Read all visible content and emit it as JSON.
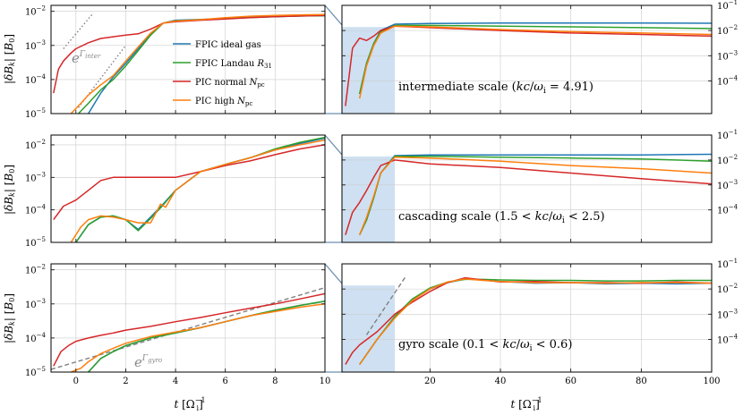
{
  "figure": {
    "colors": {
      "fpic_ideal": "#1f77b4",
      "fpic_landau": "#2ca02c",
      "pic_normal": "#d62728",
      "pic_high": "#ff7f0e",
      "grey_dash": "#808080",
      "grey_dot": "#808080",
      "shade": "#c6dbef"
    },
    "legend": [
      {
        "label": "FPIC ideal gas",
        "color_key": "fpic_ideal"
      },
      {
        "label": "FPIC Landau R31",
        "color_key": "fpic_landau"
      },
      {
        "label": "PIC normal Npc",
        "color_key": "pic_normal"
      },
      {
        "label": "PIC high Npc",
        "color_key": "pic_high"
      }
    ],
    "y_label": "|δB_k| [B_0]",
    "x_label": "t [Ω_i^-1]",
    "annotations": {
      "gamma_inter": "e^Γinter",
      "gamma_gyro": "e^Γgyro",
      "row1": "intermediate scale (kc/ωi = 4.91)",
      "row2": "cascading scale (1.5 < kc/ωi < 2.5)",
      "row3": "gyro scale (0.1 < kc/ωi < 0.6)"
    }
  },
  "chart_data": [
    {
      "type": "line",
      "panel": "row1-left",
      "yscale": "log",
      "xlim": [
        -1,
        10
      ],
      "ylim": [
        1e-05,
        0.015
      ],
      "xticks": [
        0,
        2,
        4,
        6,
        8,
        10
      ],
      "yticks_exp": [
        -5,
        -4,
        -3,
        -2
      ],
      "ytick_side": "left",
      "series": [
        {
          "name": "FPIC ideal gas",
          "color_key": "fpic_ideal",
          "x": [
            0.5,
            1,
            1.5,
            2,
            2.5,
            3,
            3.5,
            4,
            5,
            6,
            7,
            8,
            9,
            10
          ],
          "y": [
            1e-05,
            4e-05,
            0.00012,
            0.0003,
            0.0008,
            0.0022,
            0.0045,
            0.0055,
            0.0058,
            0.0062,
            0.0067,
            0.007,
            0.0073,
            0.0075
          ]
        },
        {
          "name": "FPIC Landau R31",
          "color_key": "fpic_landau",
          "x": [
            0.1,
            0.5,
            1,
            1.5,
            2,
            2.5,
            3,
            3.5,
            4,
            5,
            6,
            7,
            8,
            9,
            10
          ],
          "y": [
            1e-05,
            2e-05,
            5e-05,
            0.0001,
            0.00025,
            0.0007,
            0.002,
            0.0045,
            0.0053,
            0.0057,
            0.0062,
            0.0066,
            0.007,
            0.0073,
            0.0075
          ]
        },
        {
          "name": "PIC normal Npc",
          "color_key": "pic_normal",
          "x": [
            -0.9,
            -0.7,
            -0.5,
            -0.2,
            0,
            0.5,
            1,
            1.5,
            2,
            2.5,
            3,
            3.5,
            4,
            5,
            6,
            7,
            8,
            9,
            10
          ],
          "y": [
            4e-05,
            0.0002,
            0.00035,
            0.0006,
            0.0008,
            0.0012,
            0.0016,
            0.0018,
            0.002,
            0.0022,
            0.003,
            0.0045,
            0.005,
            0.0055,
            0.006,
            0.0065,
            0.007,
            0.0073,
            0.0076
          ]
        },
        {
          "name": "PIC high Npc",
          "color_key": "pic_high",
          "x": [
            -0.2,
            0.2,
            0.5,
            1,
            1.5,
            2,
            2.5,
            3,
            3.5,
            4,
            5,
            6,
            7,
            8,
            9,
            10
          ],
          "y": [
            1e-05,
            2e-05,
            3.5e-05,
            7e-05,
            0.00013,
            0.00035,
            0.0009,
            0.0023,
            0.0045,
            0.0052,
            0.0057,
            0.0065,
            0.0072,
            0.0076,
            0.0079,
            0.0081
          ]
        }
      ],
      "reference_lines": [
        {
          "style": "dotted",
          "color_key": "grey_dot",
          "x": [
            -0.5,
            0.7
          ],
          "y": [
            0.0008,
            0.009
          ]
        },
        {
          "style": "dotted",
          "color_key": "grey_dot",
          "x": [
            0.1,
            2.0
          ],
          "y": [
            1.5e-05,
            0.001
          ]
        }
      ]
    },
    {
      "type": "line",
      "panel": "row1-right",
      "yscale": "log",
      "xlim": [
        -5,
        100
      ],
      "ylim": [
        5e-06,
        0.1
      ],
      "xticks": [
        20,
        40,
        60,
        80,
        100
      ],
      "yticks_exp": [
        -4,
        -3,
        -2,
        -1
      ],
      "ytick_side": "right",
      "shade_x": [
        -5,
        10
      ],
      "series": [
        {
          "name": "FPIC ideal gas",
          "color_key": "fpic_ideal",
          "x": [
            0,
            2,
            4,
            6,
            10,
            20,
            40,
            60,
            80,
            100
          ],
          "y": [
            3e-05,
            0.0005,
            0.003,
            0.01,
            0.018,
            0.019,
            0.02,
            0.02,
            0.02,
            0.0195
          ]
        },
        {
          "name": "FPIC Landau R31",
          "color_key": "fpic_landau",
          "x": [
            0,
            2,
            4,
            6,
            10,
            20,
            40,
            60,
            80,
            100
          ],
          "y": [
            3e-05,
            0.0005,
            0.003,
            0.009,
            0.016,
            0.016,
            0.015,
            0.014,
            0.013,
            0.012
          ]
        },
        {
          "name": "PIC normal Npc",
          "color_key": "pic_normal",
          "x": [
            -4,
            -2,
            0,
            2,
            4,
            6,
            10,
            20,
            40,
            60,
            80,
            100
          ],
          "y": [
            1e-05,
            0.002,
            0.005,
            0.004,
            0.006,
            0.01,
            0.015,
            0.013,
            0.01,
            0.008,
            0.007,
            0.006
          ]
        },
        {
          "name": "PIC high Npc",
          "color_key": "pic_high",
          "x": [
            0,
            2,
            4,
            6,
            10,
            20,
            40,
            60,
            80,
            100
          ],
          "y": [
            2e-05,
            0.0004,
            0.0025,
            0.008,
            0.015,
            0.014,
            0.011,
            0.009,
            0.008,
            0.007
          ]
        }
      ]
    },
    {
      "type": "line",
      "panel": "row2-left",
      "yscale": "log",
      "xlim": [
        -1,
        10
      ],
      "ylim": [
        1e-05,
        0.02
      ],
      "xticks": [
        0,
        2,
        4,
        6,
        8,
        10
      ],
      "yticks_exp": [
        -5,
        -4,
        -3,
        -2
      ],
      "ytick_side": "left",
      "series": [
        {
          "name": "FPIC ideal gas",
          "color_key": "fpic_ideal",
          "x": [
            0,
            0.5,
            1,
            1.5,
            2,
            2.5,
            3,
            3.5,
            4,
            5,
            6,
            7,
            8,
            9,
            10
          ],
          "y": [
            1e-05,
            3.5e-05,
            6e-05,
            6.5e-05,
            5e-05,
            2.5e-05,
            6e-05,
            0.00015,
            0.0004,
            0.0015,
            0.0025,
            0.004,
            0.007,
            0.011,
            0.016
          ]
        },
        {
          "name": "FPIC Landau R31",
          "color_key": "fpic_landau",
          "x": [
            0,
            0.5,
            1,
            1.5,
            2,
            2.5,
            3,
            3.5,
            4,
            5,
            6,
            7,
            8,
            9,
            10
          ],
          "y": [
            1e-05,
            3.5e-05,
            6e-05,
            6.5e-05,
            5e-05,
            2.3e-05,
            5.5e-05,
            0.00014,
            0.0004,
            0.0015,
            0.0025,
            0.004,
            0.0075,
            0.012,
            0.017
          ]
        },
        {
          "name": "PIC normal Npc",
          "color_key": "pic_normal",
          "x": [
            -0.9,
            -0.5,
            0,
            0.5,
            1,
            1.5,
            2,
            3,
            4,
            5,
            6,
            7,
            8,
            9,
            10
          ],
          "y": [
            5e-05,
            0.00013,
            0.0002,
            0.0004,
            0.0008,
            0.001,
            0.001,
            0.001,
            0.001,
            0.0015,
            0.0023,
            0.0032,
            0.005,
            0.0075,
            0.01
          ]
        },
        {
          "name": "PIC high Npc",
          "color_key": "pic_high",
          "x": [
            -0.2,
            0.2,
            0.5,
            1,
            1.5,
            2,
            2.5,
            3,
            3.4,
            3.6,
            4,
            5,
            6,
            7,
            8,
            9,
            10
          ],
          "y": [
            1e-05,
            3e-05,
            5e-05,
            6.5e-05,
            6e-05,
            5e-05,
            4e-05,
            4e-05,
            0.00015,
            0.00012,
            0.0004,
            0.0015,
            0.0025,
            0.004,
            0.007,
            0.01,
            0.014
          ]
        }
      ]
    },
    {
      "type": "line",
      "panel": "row2-right",
      "yscale": "log",
      "xlim": [
        -5,
        100
      ],
      "ylim": [
        5e-06,
        0.1
      ],
      "xticks": [
        20,
        40,
        60,
        80,
        100
      ],
      "yticks_exp": [
        -4,
        -3,
        -2,
        -1
      ],
      "ytick_side": "right",
      "shade_x": [
        -5,
        10
      ],
      "series": [
        {
          "name": "FPIC ideal gas",
          "color_key": "fpic_ideal",
          "x": [
            0,
            2,
            4,
            6,
            10,
            20,
            40,
            60,
            80,
            100
          ],
          "y": [
            1e-05,
            4e-05,
            0.0003,
            0.003,
            0.015,
            0.016,
            0.016,
            0.016,
            0.016,
            0.017
          ]
        },
        {
          "name": "FPIC Landau R31",
          "color_key": "fpic_landau",
          "x": [
            0,
            2,
            4,
            6,
            10,
            20,
            40,
            60,
            80,
            100
          ],
          "y": [
            1e-05,
            4e-05,
            0.0003,
            0.003,
            0.014,
            0.014,
            0.013,
            0.012,
            0.011,
            0.009
          ]
        },
        {
          "name": "PIC normal Npc",
          "color_key": "pic_normal",
          "x": [
            -4,
            -2,
            0,
            2,
            4,
            6,
            10,
            20,
            40,
            60,
            80,
            100
          ],
          "y": [
            1e-05,
            8e-05,
            0.0002,
            0.0006,
            0.002,
            0.006,
            0.01,
            0.007,
            0.005,
            0.003,
            0.0018,
            0.0011
          ]
        },
        {
          "name": "PIC high Npc",
          "color_key": "pic_high",
          "x": [
            0,
            2,
            4,
            6,
            10,
            20,
            40,
            60,
            80,
            100
          ],
          "y": [
            1e-05,
            5e-05,
            0.00035,
            0.003,
            0.013,
            0.012,
            0.009,
            0.006,
            0.0045,
            0.003
          ]
        }
      ]
    },
    {
      "type": "line",
      "panel": "row3-left",
      "yscale": "log",
      "xlim": [
        -1,
        10
      ],
      "ylim": [
        1e-05,
        0.015
      ],
      "xticks": [
        0,
        2,
        4,
        6,
        8,
        10
      ],
      "yticks_exp": [
        -5,
        -4,
        -3,
        -2
      ],
      "ytick_side": "left",
      "series": [
        {
          "name": "FPIC ideal gas",
          "color_key": "fpic_ideal",
          "x": [
            0.5,
            1,
            1.5,
            2,
            3,
            4,
            5,
            6,
            7,
            8,
            9,
            10
          ],
          "y": [
            1e-05,
            2.5e-05,
            4e-05,
            6e-05,
            0.0001,
            0.00014,
            0.0002,
            0.0003,
            0.00045,
            0.00065,
            0.0009,
            0.0012
          ]
        },
        {
          "name": "FPIC Landau R31",
          "color_key": "fpic_landau",
          "x": [
            0.5,
            1,
            1.5,
            2,
            3,
            4,
            5,
            6,
            7,
            8,
            9,
            10
          ],
          "y": [
            1e-05,
            2.5e-05,
            4e-05,
            6e-05,
            0.0001,
            0.00014,
            0.0002,
            0.0003,
            0.00045,
            0.00065,
            0.0009,
            0.0012
          ]
        },
        {
          "name": "PIC normal Npc",
          "color_key": "pic_normal",
          "x": [
            -0.9,
            -0.6,
            -0.3,
            0,
            0.5,
            1,
            1.5,
            2,
            3,
            4,
            5,
            6,
            7,
            8,
            9,
            10
          ],
          "y": [
            1.5e-05,
            4e-05,
            6e-05,
            8e-05,
            0.0001,
            0.00012,
            0.00014,
            0.00017,
            0.00022,
            0.0003,
            0.0004,
            0.00055,
            0.00075,
            0.001,
            0.0014,
            0.002
          ]
        },
        {
          "name": "PIC high Npc",
          "color_key": "pic_high",
          "x": [
            -0.2,
            0.2,
            0.5,
            1,
            1.5,
            2,
            3,
            4,
            5,
            6,
            7,
            8,
            9,
            10
          ],
          "y": [
            1e-05,
            1.3e-05,
            2e-05,
            3.5e-05,
            5e-05,
            7e-05,
            0.00011,
            0.00015,
            0.0002,
            0.0003,
            0.00045,
            0.0006,
            0.0008,
            0.001
          ]
        }
      ],
      "reference_lines": [
        {
          "style": "dashed",
          "color_key": "grey_dash",
          "x": [
            -1,
            10
          ],
          "y": [
            1.2e-05,
            0.003
          ]
        }
      ]
    },
    {
      "type": "line",
      "panel": "row3-right",
      "yscale": "log",
      "xlim": [
        -5,
        100
      ],
      "ylim": [
        5e-06,
        0.1
      ],
      "xticks": [
        20,
        40,
        60,
        80,
        100
      ],
      "yticks_exp": [
        -4,
        -3,
        -2,
        -1
      ],
      "ytick_side": "right",
      "shade_x": [
        -5,
        10
      ],
      "series": [
        {
          "name": "FPIC ideal gas",
          "color_key": "fpic_ideal",
          "x": [
            0,
            5,
            10,
            15,
            20,
            25,
            30,
            35,
            40,
            50,
            60,
            70,
            80,
            90,
            100
          ],
          "y": [
            1e-05,
            0.0001,
            0.0008,
            0.004,
            0.01,
            0.018,
            0.025,
            0.023,
            0.02,
            0.017,
            0.018,
            0.016,
            0.017,
            0.016,
            0.017
          ]
        },
        {
          "name": "FPIC Landau R31",
          "color_key": "fpic_landau",
          "x": [
            0,
            5,
            10,
            15,
            20,
            25,
            30,
            35,
            40,
            50,
            60,
            70,
            80,
            90,
            100
          ],
          "y": [
            1e-05,
            0.0001,
            0.0008,
            0.004,
            0.011,
            0.019,
            0.024,
            0.024,
            0.023,
            0.022,
            0.022,
            0.021,
            0.021,
            0.022,
            0.022
          ]
        },
        {
          "name": "PIC normal Npc",
          "color_key": "pic_normal",
          "x": [
            -4,
            -2,
            0,
            5,
            10,
            15,
            20,
            25,
            30,
            35,
            40,
            50,
            60,
            70,
            80,
            90,
            100
          ],
          "y": [
            1e-05,
            3e-05,
            6e-05,
            0.0002,
            0.001,
            0.003,
            0.008,
            0.018,
            0.028,
            0.023,
            0.019,
            0.02,
            0.018,
            0.018,
            0.017,
            0.019,
            0.017
          ]
        },
        {
          "name": "PIC high Npc",
          "color_key": "pic_high",
          "x": [
            0,
            5,
            10,
            15,
            20,
            25,
            30,
            35,
            40,
            50,
            60,
            70,
            80,
            90,
            100
          ],
          "y": [
            1e-05,
            0.0001,
            0.0007,
            0.0035,
            0.01,
            0.019,
            0.025,
            0.022,
            0.02,
            0.018,
            0.018,
            0.017,
            0.018,
            0.018,
            0.017
          ]
        }
      ],
      "reference_lines": [
        {
          "style": "dashed",
          "color_key": "grey_dash",
          "x": [
            2,
            13
          ],
          "y": [
            0.00015,
            0.03
          ]
        }
      ]
    }
  ]
}
